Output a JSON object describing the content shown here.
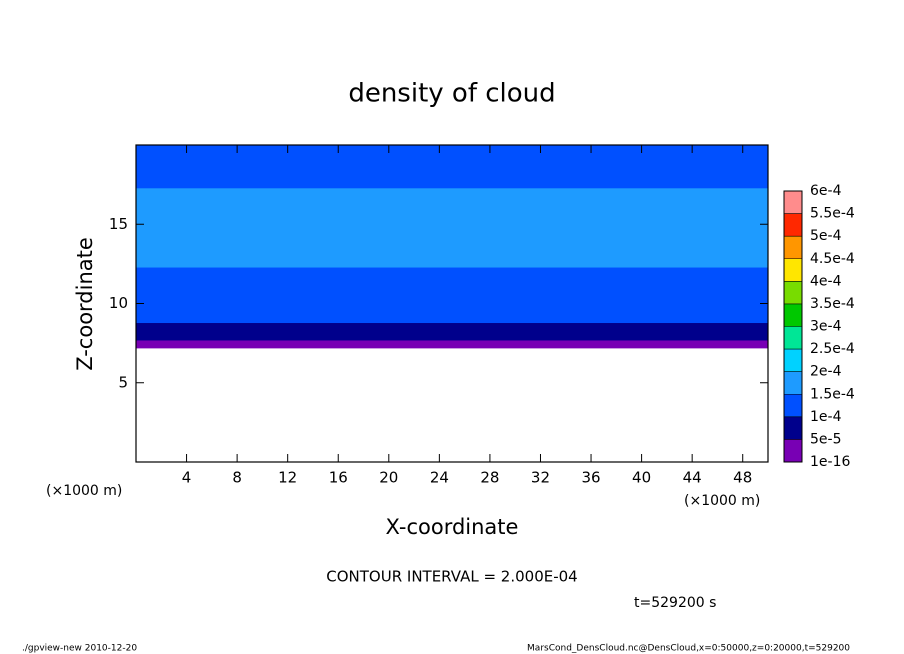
{
  "chart_data": {
    "type": "contour",
    "title": "density of cloud",
    "x_label": "X-coordinate",
    "y_label": "Z-coordinate",
    "x_unit_labels": [
      "(×1000 m)",
      "(×1000 m)"
    ],
    "xlim": [
      0,
      50
    ],
    "xticks": [
      4,
      8,
      12,
      16,
      20,
      24,
      28,
      32,
      36,
      40,
      44,
      48
    ],
    "ylim": [
      0,
      20
    ],
    "yticks": [
      5,
      10,
      15
    ],
    "profile": {
      "z_bins": [
        7.2,
        7.7,
        8.8,
        12.3,
        17.3,
        20
      ],
      "values": [
        2e-05,
        7e-05,
        0.00012,
        0.00016,
        0.00013
      ]
    },
    "levels": [
      {
        "value": 1e-16,
        "label": "1e-16"
      },
      {
        "value": 5e-05,
        "label": "5e-5"
      },
      {
        "value": 0.0001,
        "label": "1e-4"
      },
      {
        "value": 0.00015,
        "label": "1.5e-4"
      },
      {
        "value": 0.0002,
        "label": "2e-4"
      },
      {
        "value": 0.00025,
        "label": "2.5e-4"
      },
      {
        "value": 0.0003,
        "label": "3e-4"
      },
      {
        "value": 0.00035,
        "label": "3.5e-4"
      },
      {
        "value": 0.0004,
        "label": "4e-4"
      },
      {
        "value": 0.00045,
        "label": "4.5e-4"
      },
      {
        "value": 0.0005,
        "label": "5e-4"
      },
      {
        "value": 0.00055,
        "label": "5.5e-4"
      },
      {
        "value": 0.0006,
        "label": "6e-4"
      }
    ],
    "level_colors": [
      "#7800b4",
      "#00008c",
      "#0050ff",
      "#1e9bff",
      "#00d2ff",
      "#00e696",
      "#00c800",
      "#78dc00",
      "#ffe600",
      "#ff9600",
      "#ff2800",
      "#ff8c8c"
    ],
    "annotations": [
      "CONTOUR INTERVAL = 2.000E-04",
      "t=529200 s"
    ],
    "footer": [
      "./gpview-new  2010-12-20",
      "MarsCond_DensCloud.nc@DensCloud,x=0:50000,z=0:20000,t=529200"
    ]
  }
}
